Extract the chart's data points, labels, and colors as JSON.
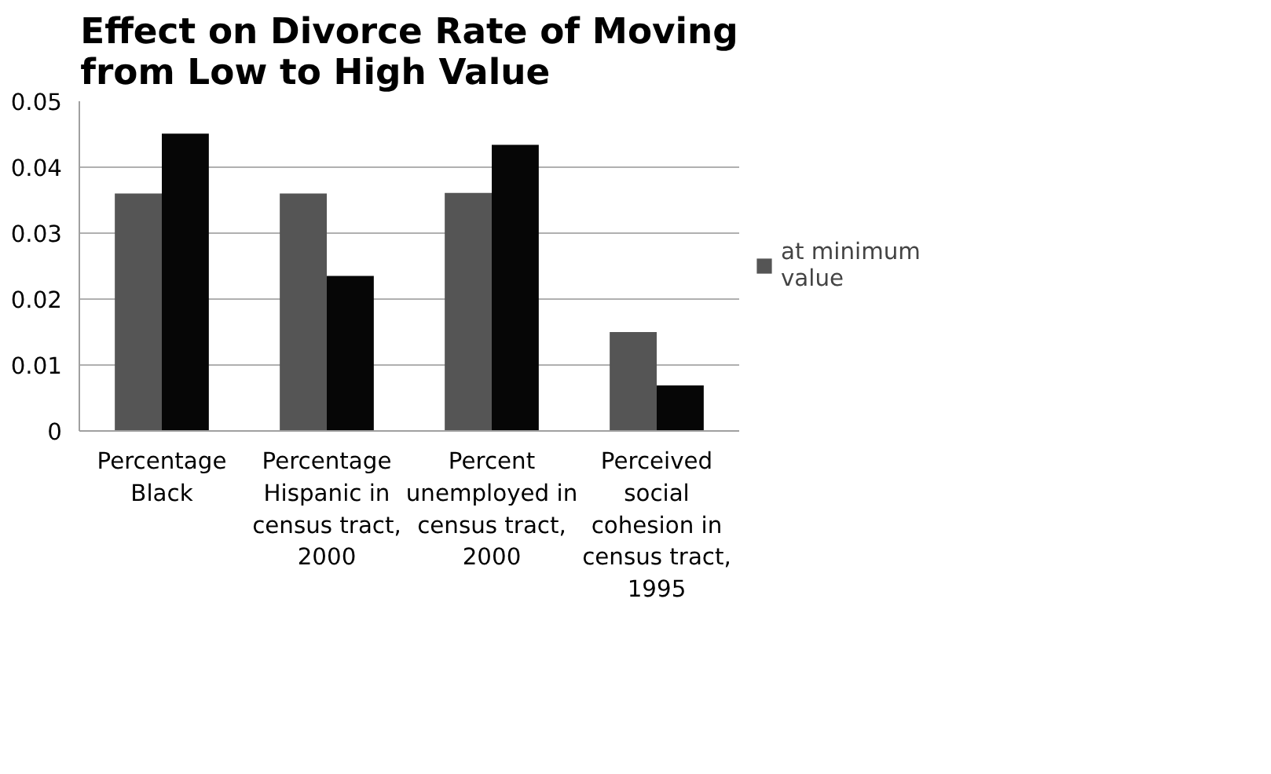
{
  "chart_data": {
    "type": "bar",
    "title": "Effect on Divorce Rate of Moving from Low to High Value",
    "categories": [
      "Percentage Black",
      "Percentage Hispanic in census tract, 2000",
      "Percent unemployed in census tract, 2000",
      "Perceived social cohesion in census tract, 1995"
    ],
    "series": [
      {
        "name": "at minimum value",
        "color": "#555555",
        "values": [
          0.036,
          0.036,
          0.0361,
          0.015
        ]
      },
      {
        "color": "#060606",
        "values": [
          0.0451,
          0.0235,
          0.0434,
          0.0069
        ]
      }
    ],
    "ylim": [
      0,
      0.05
    ],
    "yticks": [
      {
        "value": 0,
        "label": "0"
      },
      0.01,
      0.02,
      0.03,
      0.04,
      0.05
    ],
    "grid": "y",
    "legend": "right"
  }
}
